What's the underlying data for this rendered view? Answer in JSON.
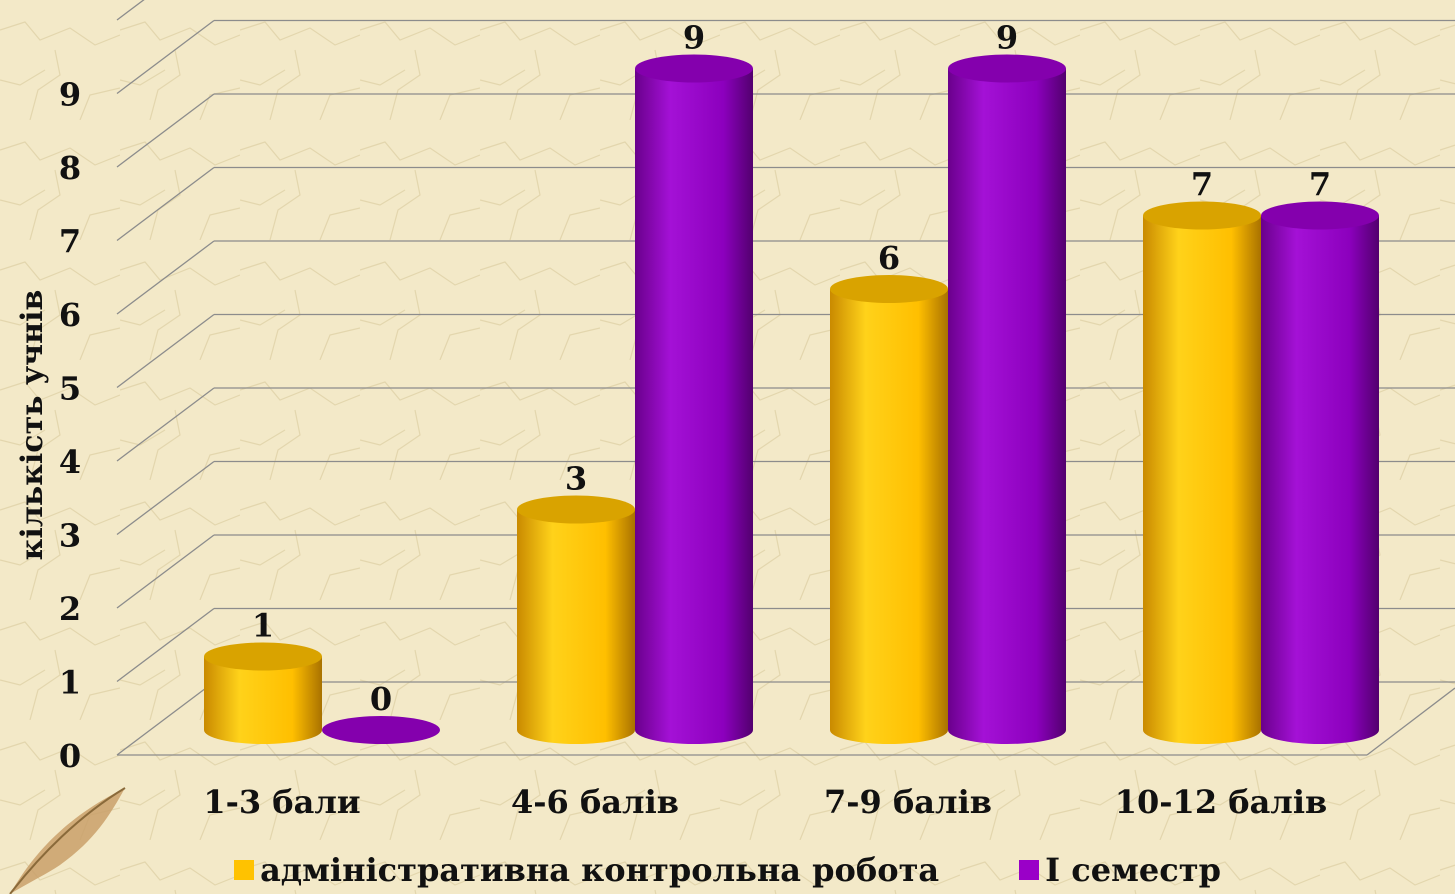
{
  "chart_data": {
    "type": "bar",
    "ylabel": "кількість учнів",
    "xlabel": "",
    "ylim": [
      0,
      9
    ],
    "yticks": [
      "0",
      "1",
      "2",
      "3",
      "4",
      "5",
      "6",
      "7",
      "8",
      "9"
    ],
    "categories": [
      "1-3 бали",
      "4-6 балів",
      "7-9 балів",
      "10-12 балів"
    ],
    "series": [
      {
        "name": "адміністративна контрольна робота",
        "values": [
          1,
          3,
          6,
          7
        ],
        "color": "#ffc200"
      },
      {
        "name": "І семестр",
        "values": [
          0,
          9,
          9,
          7
        ],
        "color": "#9a00c8"
      }
    ],
    "grid": true,
    "legend_position": "bottom",
    "bar_shape": "3d-cylinder"
  }
}
